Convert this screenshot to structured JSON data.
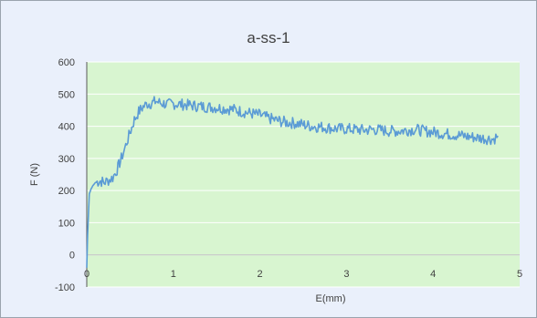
{
  "chart_data": {
    "type": "line",
    "title": "a-ss-1",
    "xlabel": "E(mm)",
    "ylabel": "F (N)",
    "xlim": [
      0,
      5
    ],
    "ylim": [
      -100,
      600
    ],
    "xticks": [
      "0",
      "1",
      "2",
      "3",
      "4",
      "5"
    ],
    "yticks": [
      "-100",
      "0",
      "100",
      "200",
      "300",
      "400",
      "500",
      "600"
    ],
    "grid": true,
    "legend": "none",
    "colors": {
      "line": "#5b9bd5",
      "plot_background": "#d8f5d0",
      "chart_background": "#eaf0fb",
      "gridline": "#ffffff"
    },
    "series": [
      {
        "x": [
          0.0,
          0.01,
          0.02,
          0.03,
          0.05,
          0.07,
          0.1,
          0.13,
          0.16,
          0.2,
          0.25,
          0.3,
          0.35,
          0.4,
          0.45,
          0.5,
          0.55,
          0.6,
          0.65,
          0.7,
          0.75,
          0.8,
          0.85,
          0.9,
          0.95,
          1.0,
          1.1,
          1.2,
          1.3,
          1.4,
          1.5,
          1.6,
          1.7,
          1.8,
          1.9,
          2.0,
          2.1,
          2.2,
          2.3,
          2.4,
          2.5,
          2.6,
          2.7,
          2.8,
          2.9,
          3.0,
          3.1,
          3.2,
          3.3,
          3.4,
          3.5,
          3.6,
          3.7,
          3.8,
          3.9,
          4.0,
          4.1,
          4.2,
          4.3,
          4.4,
          4.5,
          4.6,
          4.7,
          4.75
        ],
        "y": [
          -40,
          60,
          130,
          190,
          205,
          215,
          225,
          228,
          230,
          225,
          232,
          240,
          265,
          300,
          340,
          380,
          420,
          445,
          460,
          470,
          472,
          478,
          472,
          470,
          468,
          470,
          468,
          465,
          462,
          460,
          458,
          455,
          452,
          445,
          440,
          435,
          425,
          418,
          412,
          410,
          405,
          400,
          398,
          395,
          392,
          392,
          390,
          388,
          390,
          388,
          385,
          385,
          388,
          390,
          385,
          382,
          378,
          375,
          372,
          368,
          365,
          362,
          360,
          370
        ]
      }
    ]
  }
}
